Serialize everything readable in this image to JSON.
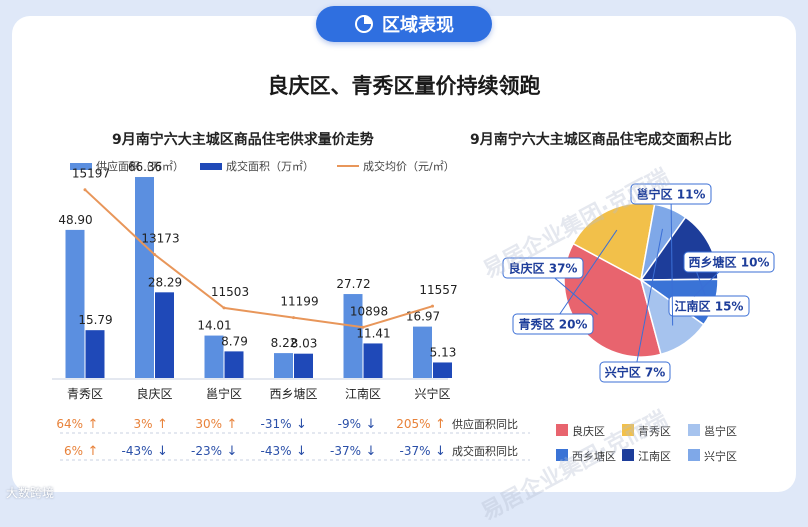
{
  "header": {
    "pill_label": "区域表现",
    "headline": "良庆区、青秀区量价持续领跑"
  },
  "left_chart": {
    "title": "9月南宁六大主城区商品住宅供求量价走势",
    "legend": {
      "supply": "供应面积（万㎡）",
      "deal": "成交面积（万㎡）",
      "price": "成交均价（元/㎡）"
    },
    "row_labels": {
      "supply_yoy": "供应面积同比",
      "deal_yoy": "成交面积同比"
    }
  },
  "right_chart": {
    "title": "9月南宁六大主城区商品住宅成交面积占比"
  },
  "watermarks": {
    "brand1": "易居企业集团·克而瑞",
    "brand2": "易居企业集团·克而瑞"
  },
  "corner_mark": "大数跨境",
  "colors": {
    "supply": "#5b8fe0",
    "deal": "#1f49b8",
    "price": "#e8965a",
    "up": "#e8823a",
    "down": "#2a4fa8",
    "pie": [
      "#e8646e",
      "#f2c04a",
      "#a6c3ee",
      "#3a73d6",
      "#1d3d9a",
      "#7fa8e8"
    ]
  },
  "chart_data": [
    {
      "type": "bar",
      "categories": [
        "青秀区",
        "良庆区",
        "邕宁区",
        "西乡塘区",
        "江南区",
        "兴宁区"
      ],
      "series": [
        {
          "name": "供应面积（万㎡）",
          "values": [
            48.9,
            66.36,
            14.01,
            8.22,
            27.72,
            16.97
          ]
        },
        {
          "name": "成交面积（万㎡）",
          "values": [
            15.79,
            28.29,
            8.79,
            8.03,
            11.41,
            5.13
          ]
        },
        {
          "name": "成交均价（元/㎡）",
          "type": "line",
          "values": [
            15197,
            13173,
            11503,
            11199,
            10898,
            11557
          ]
        }
      ],
      "supply_yoy": [
        {
          "text": "64%",
          "dir": "up"
        },
        {
          "text": "3%",
          "dir": "up"
        },
        {
          "text": "30%",
          "dir": "up"
        },
        {
          "text": "-31%",
          "dir": "down"
        },
        {
          "text": "-9%",
          "dir": "down"
        },
        {
          "text": "205%",
          "dir": "up"
        }
      ],
      "deal_yoy": [
        {
          "text": "6%",
          "dir": "up"
        },
        {
          "text": "-43%",
          "dir": "down"
        },
        {
          "text": "-23%",
          "dir": "down"
        },
        {
          "text": "-43%",
          "dir": "down"
        },
        {
          "text": "-37%",
          "dir": "down"
        },
        {
          "text": "-37%",
          "dir": "down"
        }
      ],
      "title": "9月南宁六大主城区商品住宅供求量价走势",
      "ylim": [
        0,
        70
      ],
      "price_ylim": [
        9000,
        16500
      ]
    },
    {
      "type": "pie",
      "title": "9月南宁六大主城区商品住宅成交面积占比",
      "slices": [
        {
          "name": "良庆区",
          "value": 37
        },
        {
          "name": "青秀区",
          "value": 20
        },
        {
          "name": "兴宁区",
          "value": 7
        },
        {
          "name": "江南区",
          "value": 15
        },
        {
          "name": "西乡塘区",
          "value": 10
        },
        {
          "name": "邕宁区",
          "value": 11
        }
      ],
      "legend": [
        "良庆区",
        "青秀区",
        "邕宁区",
        "西乡塘区",
        "江南区",
        "兴宁区"
      ]
    }
  ]
}
